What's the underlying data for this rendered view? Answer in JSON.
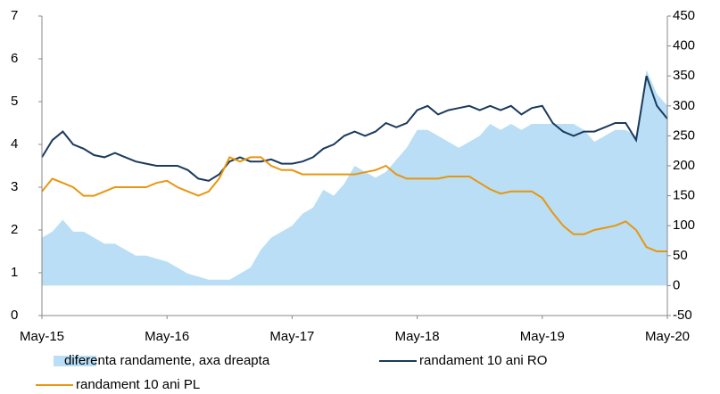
{
  "chart_data": {
    "type": "line",
    "categories": [
      "May-15",
      "Jun-15",
      "Jul-15",
      "Aug-15",
      "Sep-15",
      "Oct-15",
      "Nov-15",
      "Dec-15",
      "Jan-16",
      "Feb-16",
      "Mar-16",
      "Apr-16",
      "May-16",
      "Jun-16",
      "Jul-16",
      "Aug-16",
      "Sep-16",
      "Oct-16",
      "Nov-16",
      "Dec-16",
      "Jan-17",
      "Feb-17",
      "Mar-17",
      "Apr-17",
      "May-17",
      "Jun-17",
      "Jul-17",
      "Aug-17",
      "Sep-17",
      "Oct-17",
      "Nov-17",
      "Dec-17",
      "Jan-18",
      "Feb-18",
      "Mar-18",
      "Apr-18",
      "May-18",
      "Jun-18",
      "Jul-18",
      "Aug-18",
      "Sep-18",
      "Oct-18",
      "Nov-18",
      "Dec-18",
      "Jan-19",
      "Feb-19",
      "Mar-19",
      "Apr-19",
      "May-19",
      "Jun-19",
      "Jul-19",
      "Aug-19",
      "Sep-19",
      "Oct-19",
      "Nov-19",
      "Dec-19",
      "Jan-20",
      "Feb-20",
      "Mar-20",
      "Apr-20",
      "May-20"
    ],
    "xticks": [
      "May-15",
      "May-16",
      "May-17",
      "May-18",
      "May-19",
      "May-20"
    ],
    "ylim": [
      0,
      7
    ],
    "yticks": [
      0,
      1,
      2,
      3,
      4,
      5,
      6,
      7
    ],
    "y2lim": [
      -50,
      450
    ],
    "y2ticks": [
      -50,
      0,
      50,
      100,
      150,
      200,
      250,
      300,
      350,
      400,
      450
    ],
    "series": [
      {
        "name": "diferenta randamente, axa dreapta",
        "color": "#b9def5",
        "axis": "y2",
        "kind": "area",
        "values": [
          80,
          90,
          110,
          90,
          90,
          80,
          70,
          70,
          60,
          50,
          50,
          45,
          40,
          30,
          20,
          15,
          10,
          10,
          10,
          20,
          30,
          60,
          80,
          90,
          100,
          120,
          130,
          160,
          150,
          170,
          200,
          190,
          180,
          190,
          210,
          230,
          260,
          260,
          250,
          240,
          230,
          240,
          250,
          270,
          260,
          270,
          260,
          270,
          270,
          270,
          270,
          270,
          260,
          240,
          250,
          260,
          260,
          250,
          360,
          320,
          300
        ]
      },
      {
        "name": "randament 10 ani RO",
        "color": "#1b3a5c",
        "axis": "y",
        "values": [
          3.7,
          4.1,
          4.3,
          4.0,
          3.9,
          3.75,
          3.7,
          3.8,
          3.7,
          3.6,
          3.55,
          3.5,
          3.5,
          3.5,
          3.4,
          3.2,
          3.15,
          3.3,
          3.6,
          3.7,
          3.6,
          3.6,
          3.65,
          3.55,
          3.55,
          3.6,
          3.7,
          3.9,
          4.0,
          4.2,
          4.3,
          4.2,
          4.3,
          4.5,
          4.4,
          4.5,
          4.8,
          4.9,
          4.7,
          4.8,
          4.85,
          4.9,
          4.8,
          4.9,
          4.8,
          4.9,
          4.7,
          4.85,
          4.9,
          4.5,
          4.3,
          4.2,
          4.3,
          4.3,
          4.4,
          4.5,
          4.5,
          4.1,
          5.6,
          4.9,
          4.6
        ]
      },
      {
        "name": "randament 10 ani PL",
        "color": "#e8960f",
        "axis": "y",
        "values": [
          2.9,
          3.2,
          3.1,
          3.0,
          2.8,
          2.8,
          2.9,
          3.0,
          3.0,
          3.0,
          3.0,
          3.1,
          3.15,
          3.0,
          2.9,
          2.8,
          2.9,
          3.2,
          3.7,
          3.6,
          3.7,
          3.7,
          3.5,
          3.4,
          3.4,
          3.3,
          3.3,
          3.3,
          3.3,
          3.3,
          3.3,
          3.35,
          3.4,
          3.5,
          3.3,
          3.2,
          3.2,
          3.2,
          3.2,
          3.25,
          3.25,
          3.25,
          3.1,
          2.95,
          2.85,
          2.9,
          2.9,
          2.9,
          2.75,
          2.4,
          2.1,
          1.9,
          1.9,
          2.0,
          2.05,
          2.1,
          2.2,
          2.0,
          1.6,
          1.5,
          1.5
        ]
      }
    ]
  }
}
